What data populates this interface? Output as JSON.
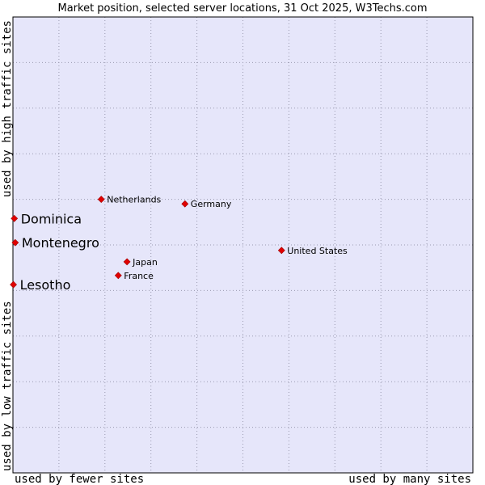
{
  "chart_data": {
    "type": "scatter",
    "title": "Market position, selected server locations, 31 Oct 2025, W3Techs.com",
    "xlabel_low": "used by fewer sites",
    "xlabel_high": "used by many sites",
    "ylabel_low": "used by low traffic sites",
    "ylabel_high": "used by high traffic sites",
    "xlim": [
      0,
      100
    ],
    "ylim": [
      0,
      100
    ],
    "grid": true,
    "colors": {
      "plot_bg": "#e6e6fa",
      "grid": "#9a9ab0",
      "point": "#e00000",
      "point_stroke": "#a00000",
      "border": "#000000"
    },
    "points": [
      {
        "name": "Netherlands",
        "x": 19.2,
        "y": 60.0,
        "emphasis": false
      },
      {
        "name": "Germany",
        "x": 37.4,
        "y": 59.0,
        "emphasis": false
      },
      {
        "name": "Dominica",
        "x": 0.3,
        "y": 55.8,
        "emphasis": true
      },
      {
        "name": "Montenegro",
        "x": 0.5,
        "y": 50.5,
        "emphasis": true
      },
      {
        "name": "United States",
        "x": 58.4,
        "y": 48.8,
        "emphasis": false
      },
      {
        "name": "Japan",
        "x": 24.8,
        "y": 46.3,
        "emphasis": false
      },
      {
        "name": "France",
        "x": 22.9,
        "y": 43.3,
        "emphasis": false
      },
      {
        "name": "Lesotho",
        "x": 0.1,
        "y": 41.3,
        "emphasis": true
      }
    ]
  }
}
